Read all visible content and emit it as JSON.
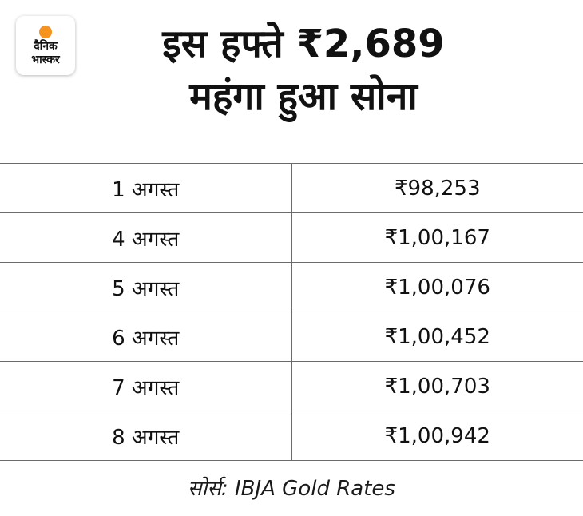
{
  "logo": {
    "line1": "दैनिक",
    "line2": "भास्कर",
    "accent_color": "#f7941d"
  },
  "title": {
    "line1": "इस हफ्ते ₹2,689",
    "line2": "महंगा हुआ सोना"
  },
  "rates": [
    {
      "date": "1 अगस्त",
      "price": "₹98,253"
    },
    {
      "date": "4 अगस्त",
      "price": "₹1,00,167"
    },
    {
      "date": "5 अगस्त",
      "price": "₹1,00,076"
    },
    {
      "date": "6 अगस्त",
      "price": "₹1,00,452"
    },
    {
      "date": "7 अगस्त",
      "price": "₹1,00,703"
    },
    {
      "date": "8 अगस्त",
      "price": "₹1,00,942"
    }
  ],
  "source": "सोर्स: IBJA Gold Rates"
}
